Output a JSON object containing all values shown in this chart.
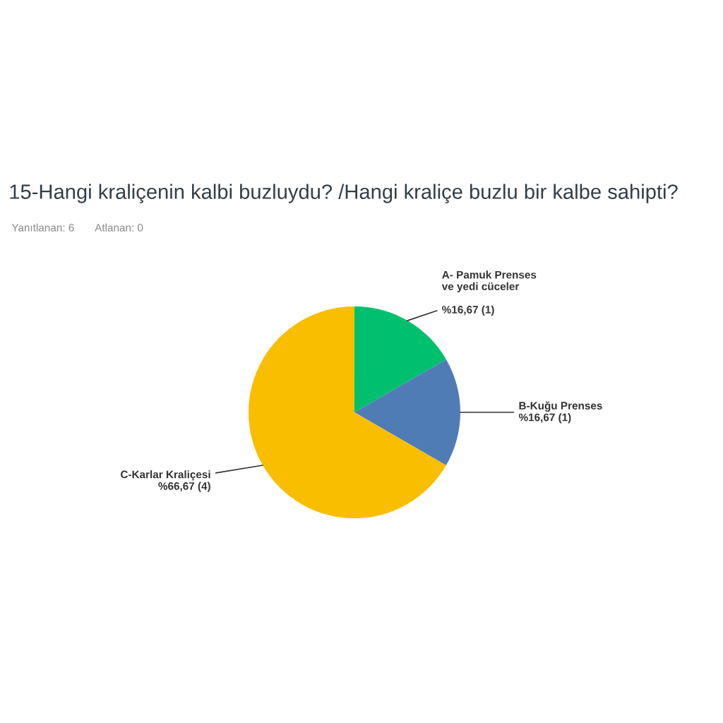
{
  "chart_data": {
    "type": "pie",
    "title": "15-Hangi kraliçenin kalbi buzluydu? /Hangi kraliçe buzlu bir kalbe sahipti?",
    "annotations": [
      "Yanıtlanan: 6",
      "Atlanan: 0"
    ],
    "categories": [
      "A- Pamuk Prenses\nve yedi cüceler",
      "B-Kuğu Prenses",
      "C-Karlar Kraliçesi"
    ],
    "values": [
      16.67,
      16.67,
      66.67
    ],
    "value_labels": [
      "%16,67 (1)",
      "%16,67 (1)",
      "%66,67 (4)"
    ],
    "colors": [
      "#00bf6f",
      "#507cb6",
      "#f9be00"
    ],
    "legend": false
  }
}
